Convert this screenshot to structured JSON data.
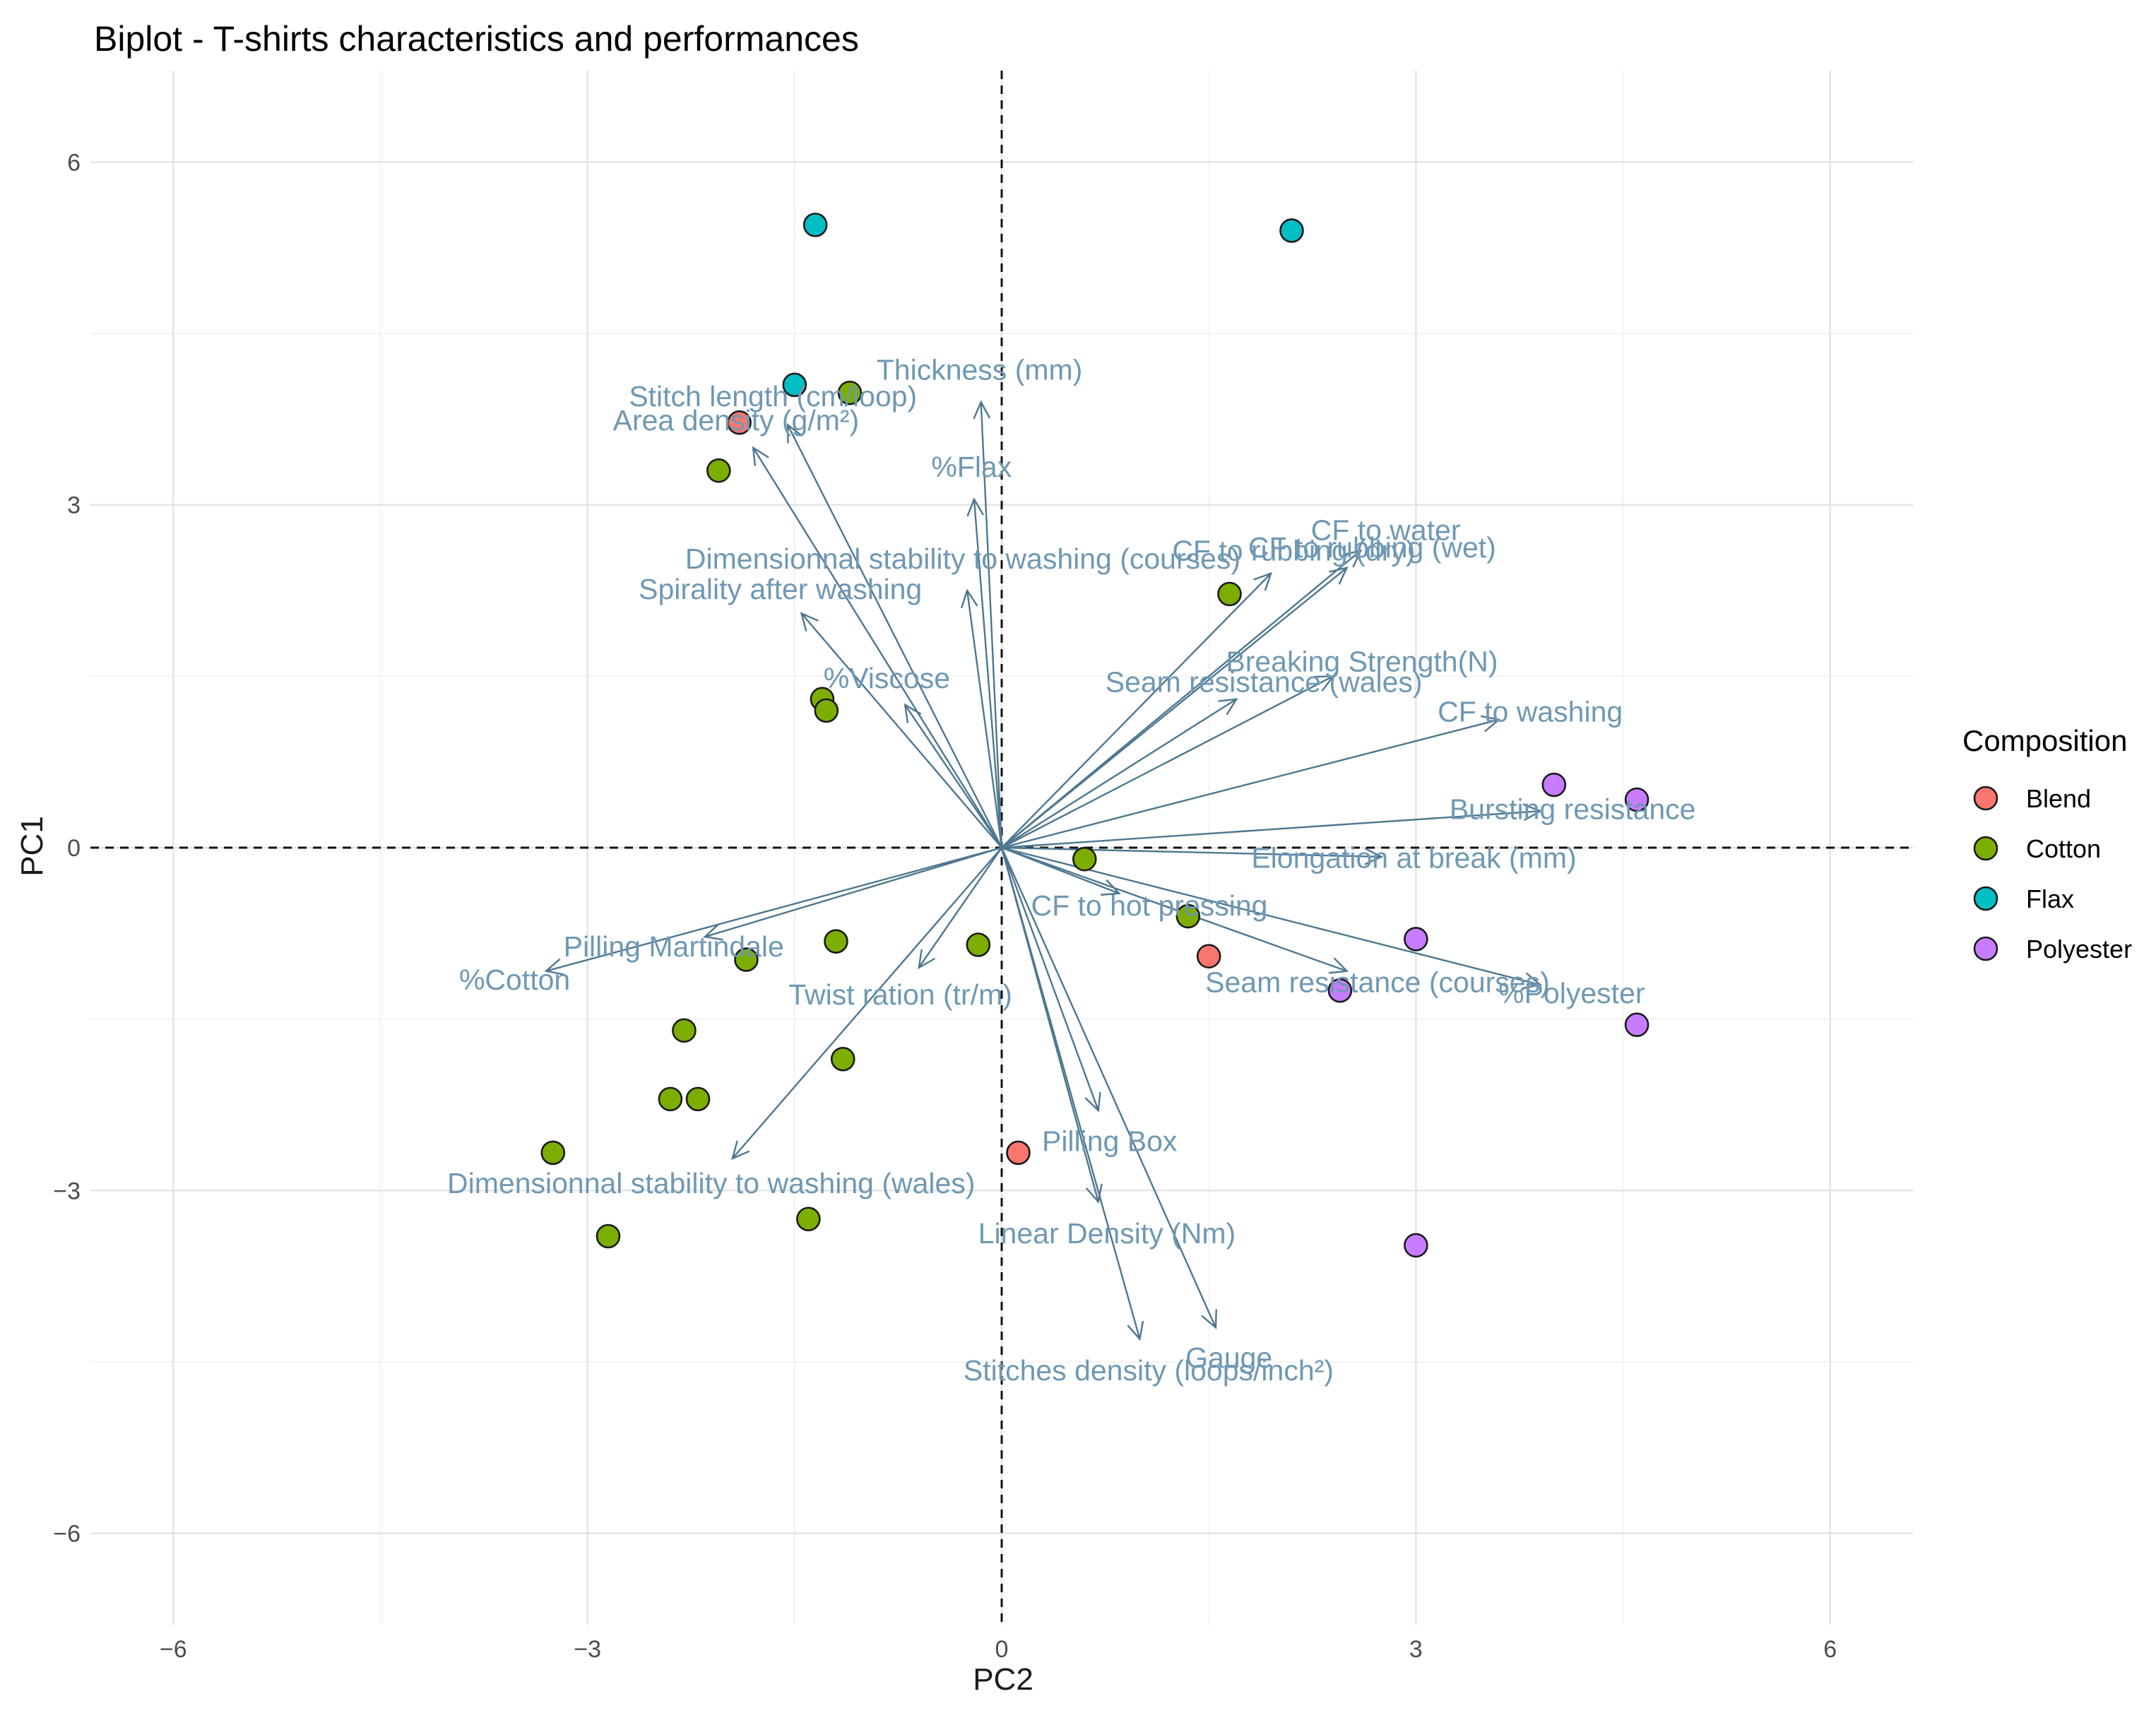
{
  "chart_data": {
    "type": "scatter",
    "subtype": "pca-biplot",
    "title": "Biplot - T-shirts characteristics and performances",
    "xlabel": "PC2",
    "ylabel": "PC1",
    "xlim": [
      -6.6,
      6.6
    ],
    "ylim": [
      -6.8,
      6.8
    ],
    "x_ticks": [
      -6,
      -3,
      0,
      3,
      6
    ],
    "y_ticks": [
      -6,
      -3,
      0,
      3,
      6
    ],
    "x_tick_labels": [
      "−6",
      "−3",
      "0",
      "3",
      "6"
    ],
    "y_tick_labels": [
      "−6",
      "−3",
      "0",
      "3",
      "6"
    ],
    "grid": true,
    "reference_lines": {
      "x": 0,
      "y": 0,
      "style": "dashed"
    },
    "legend": {
      "title": "Composition",
      "position": "right",
      "entries": [
        {
          "name": "Blend",
          "color": "#F8766D"
        },
        {
          "name": "Cotton",
          "color": "#7CAE00"
        },
        {
          "name": "Flax",
          "color": "#00BFC4"
        },
        {
          "name": "Polyester",
          "color": "#C77CFF"
        }
      ]
    },
    "points": [
      {
        "group": "Flax",
        "x": -1.35,
        "y": 5.45
      },
      {
        "group": "Flax",
        "x": 2.1,
        "y": 5.4
      },
      {
        "group": "Flax",
        "x": -1.5,
        "y": 4.05
      },
      {
        "group": "Cotton",
        "x": -1.1,
        "y": 3.98
      },
      {
        "group": "Blend",
        "x": -1.9,
        "y": 3.72
      },
      {
        "group": "Cotton",
        "x": -2.05,
        "y": 3.3
      },
      {
        "group": "Cotton",
        "x": 1.65,
        "y": 2.22
      },
      {
        "group": "Cotton",
        "x": -1.3,
        "y": 1.3
      },
      {
        "group": "Cotton",
        "x": -1.27,
        "y": 1.2
      },
      {
        "group": "Polyester",
        "x": 4.0,
        "y": 0.55
      },
      {
        "group": "Polyester",
        "x": 4.6,
        "y": 0.42
      },
      {
        "group": "Cotton",
        "x": 0.6,
        "y": -0.1
      },
      {
        "group": "Cotton",
        "x": 1.35,
        "y": -0.6
      },
      {
        "group": "Blend",
        "x": 1.5,
        "y": -0.95
      },
      {
        "group": "Polyester",
        "x": 3.0,
        "y": -0.8
      },
      {
        "group": "Polyester",
        "x": 2.45,
        "y": -1.25
      },
      {
        "group": "Polyester",
        "x": 4.6,
        "y": -1.55
      },
      {
        "group": "Cotton",
        "x": -1.2,
        "y": -0.82
      },
      {
        "group": "Cotton",
        "x": -0.17,
        "y": -0.85
      },
      {
        "group": "Cotton",
        "x": -1.85,
        "y": -0.98
      },
      {
        "group": "Cotton",
        "x": -2.3,
        "y": -1.6
      },
      {
        "group": "Cotton",
        "x": -1.15,
        "y": -1.85
      },
      {
        "group": "Cotton",
        "x": -2.4,
        "y": -2.2
      },
      {
        "group": "Cotton",
        "x": -2.2,
        "y": -2.2
      },
      {
        "group": "Cotton",
        "x": -3.25,
        "y": -2.67
      },
      {
        "group": "Blend",
        "x": 0.12,
        "y": -2.67
      },
      {
        "group": "Cotton",
        "x": -1.4,
        "y": -3.25
      },
      {
        "group": "Cotton",
        "x": -2.85,
        "y": -3.4
      },
      {
        "group": "Polyester",
        "x": 3.0,
        "y": -3.48
      }
    ],
    "loadings": [
      {
        "name": "Thickness (mm)",
        "x": -0.15,
        "y": 3.9
      },
      {
        "name": "Stitch length (cm/loop)",
        "x": -1.55,
        "y": 3.7
      },
      {
        "name": "Area density (g/m²)",
        "x": -1.8,
        "y": 3.5
      },
      {
        "name": "%Flax",
        "x": -0.2,
        "y": 3.05
      },
      {
        "name": "Dimensionnal stability to washing (courses)",
        "x": -0.25,
        "y": 2.25
      },
      {
        "name": "CF to water",
        "x": 2.6,
        "y": 2.6
      },
      {
        "name": "CF to rubbing (wet)",
        "x": 2.5,
        "y": 2.45
      },
      {
        "name": "CF to rubbing (dry)",
        "x": 1.95,
        "y": 2.4
      },
      {
        "name": "Spirality after washing",
        "x": -1.45,
        "y": 2.05
      },
      {
        "name": "Breaking Strength(N)",
        "x": 2.4,
        "y": 1.5
      },
      {
        "name": "Seam resistance (wales)",
        "x": 1.7,
        "y": 1.3
      },
      {
        "name": "%Viscose",
        "x": -0.7,
        "y": 1.25
      },
      {
        "name": "CF to washing",
        "x": 3.6,
        "y": 1.12
      },
      {
        "name": "Bursting resistance",
        "x": 3.9,
        "y": 0.32
      },
      {
        "name": "Elongation at break (mm)",
        "x": 2.75,
        "y": -0.08
      },
      {
        "name": "CF to hot pressing",
        "x": 0.85,
        "y": -0.4
      },
      {
        "name": "Pilling Martindale",
        "x": -2.15,
        "y": -0.78
      },
      {
        "name": "%Cotton",
        "x": -3.3,
        "y": -1.08
      },
      {
        "name": "Twist ration (tr/m)",
        "x": -0.6,
        "y": -1.05
      },
      {
        "name": "Seam resistance (courses)",
        "x": 2.5,
        "y": -1.08
      },
      {
        "name": "%Polyester",
        "x": 3.9,
        "y": -1.2
      },
      {
        "name": "Dimensionnal stability to washing (wales)",
        "x": -1.95,
        "y": -2.72
      },
      {
        "name": "Pilling Box",
        "x": 0.7,
        "y": -2.3
      },
      {
        "name": "Linear Density (Nm)",
        "x": 0.7,
        "y": -3.1
      },
      {
        "name": "Gauge",
        "x": 1.55,
        "y": -4.2
      },
      {
        "name": "Stitches density (loops/inch²)",
        "x": 1.0,
        "y": -4.3
      }
    ],
    "loading_label_color": "#6f98b3",
    "arrow_color": "#4e7790"
  }
}
